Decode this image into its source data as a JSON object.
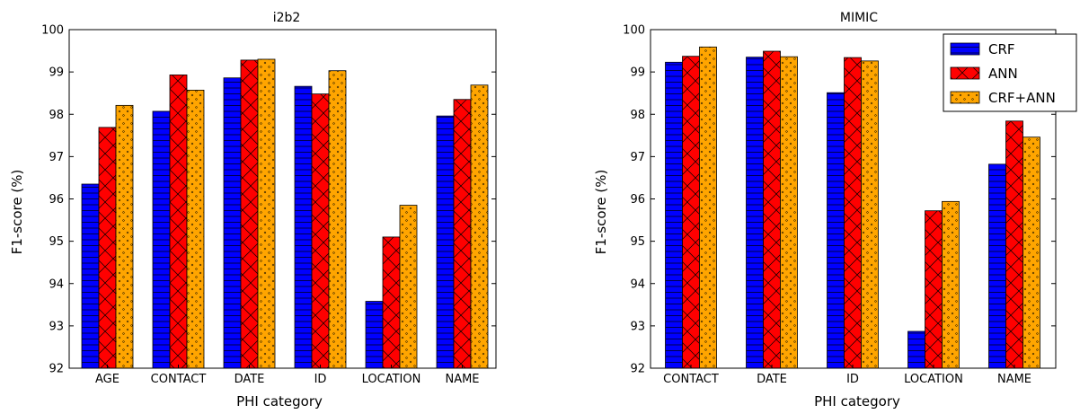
{
  "colors": {
    "CRF": "#0000ff",
    "ANN": "#ff0000",
    "CRF+ANN": "#ffa500"
  },
  "legend": {
    "placement": "top-right of MIMIC panel",
    "entries": [
      "CRF",
      "ANN",
      "CRF+ANN"
    ]
  },
  "chart_data": [
    {
      "type": "bar",
      "title": "i2b2",
      "xlabel": "PHI category",
      "ylabel": "F1-score (%)",
      "ylim": [
        92,
        100
      ],
      "yticks": [
        "92",
        "93",
        "94",
        "95",
        "96",
        "97",
        "98",
        "99",
        "100"
      ],
      "categories": [
        "AGE",
        "CONTACT",
        "DATE",
        "ID",
        "LOCATION",
        "NAME"
      ],
      "series": [
        {
          "name": "CRF",
          "values": [
            96.35,
            98.07,
            98.86,
            98.66,
            93.58,
            97.96
          ]
        },
        {
          "name": "ANN",
          "values": [
            97.69,
            98.93,
            99.28,
            98.48,
            95.1,
            98.35
          ]
        },
        {
          "name": "CRF+ANN",
          "values": [
            98.21,
            98.57,
            99.3,
            99.03,
            95.85,
            98.69
          ]
        }
      ],
      "grid": false
    },
    {
      "type": "bar",
      "title": "MIMIC",
      "xlabel": "PHI category",
      "ylabel": "F1-score (%)",
      "ylim": [
        92,
        100
      ],
      "yticks": [
        "92",
        "93",
        "94",
        "95",
        "96",
        "97",
        "98",
        "99",
        "100"
      ],
      "categories": [
        "CONTACT",
        "DATE",
        "ID",
        "LOCATION",
        "NAME"
      ],
      "series": [
        {
          "name": "CRF",
          "values": [
            99.23,
            99.35,
            98.51,
            92.87,
            96.82
          ]
        },
        {
          "name": "ANN",
          "values": [
            99.37,
            99.49,
            99.34,
            95.72,
            97.84
          ]
        },
        {
          "name": "CRF+ANN",
          "values": [
            99.59,
            99.36,
            99.26,
            95.94,
            97.46
          ]
        }
      ],
      "grid": false
    }
  ]
}
